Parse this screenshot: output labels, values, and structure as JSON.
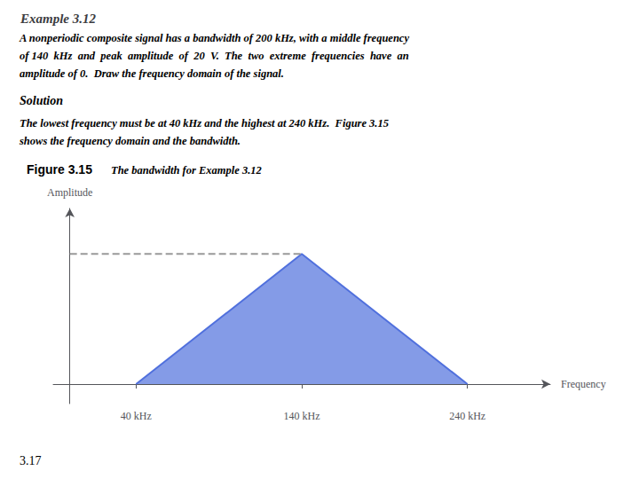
{
  "chart_data": {
    "type": "line",
    "title": "Example 3.12",
    "annotations": [
      "A nonperiodic composite signal has a bandwidth of 200 kHz, with a middle frequency",
      "of 140  kHz  and  peak  amplitude  of  20  V.  The  two  extreme  frequencies  have  an",
      "amplitude of 0.  Draw the frequency domain of the signal.",
      "Solution",
      "The lowest frequency must be at 40 kHz and the highest at 240 kHz.  Figure 3.15",
      "shows the frequency domain and the bandwidth.",
      "Figure 3.15",
      "The bandwidth for Example 3.12",
      "3.17"
    ],
    "xlabel": "Frequency",
    "ylabel": "Amplitude",
    "series": [
      {
        "type": "area",
        "x": [
          40,
          140,
          240
        ],
        "values": [
          0,
          20,
          0
        ]
      },
      {
        "type": "line",
        "line_style": "dashed",
        "color": "#999999",
        "x": [
          0,
          140
        ],
        "values": [
          20,
          20
        ]
      }
    ],
    "xlim": [
      -10,
      290
    ],
    "ylim": [
      -3,
      27
    ],
    "xticks": [
      {
        "value": 40,
        "label": "40 kHz"
      },
      {
        "value": 140,
        "label": "140 kHz"
      },
      {
        "value": 240,
        "label": "240 kHz"
      }
    ],
    "yticks": [],
    "tick_labels": "x",
    "grid": false
  }
}
